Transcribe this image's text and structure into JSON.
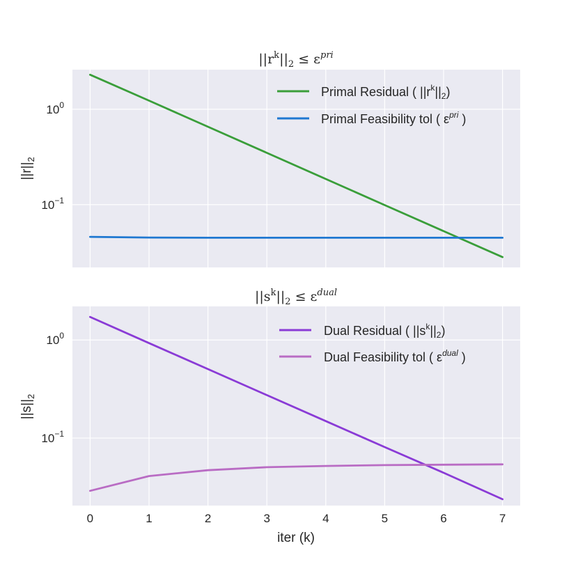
{
  "chart_data": [
    {
      "type": "line",
      "title": "||r^k||_2 ≤ ε^pri",
      "title_parts": {
        "lead": "||r",
        "sup1": "k",
        "mid": "||",
        "sub": "2",
        "rel": " ≤ ε",
        "sup2": "pri"
      },
      "xlabel": "",
      "ylabel": "||r||_2",
      "ylabel_parts": {
        "main": "||r||",
        "sub": "2"
      },
      "yscale": "log",
      "ylim": [
        0.022,
        2.6
      ],
      "xlim": [
        -0.3,
        7.3
      ],
      "grid": true,
      "legend_position": "top-right",
      "x": [
        0,
        1,
        2,
        3,
        4,
        5,
        6,
        7
      ],
      "xticks": [
        "0",
        "1",
        "2",
        "3",
        "4",
        "5",
        "6",
        "7"
      ],
      "ytick_labels": [
        {
          "value": 1,
          "base": "10",
          "exp": "0"
        },
        {
          "value": 0.1,
          "base": "10",
          "exp": "−1"
        }
      ],
      "series": [
        {
          "name": "Primal Residual ( ||r^k||_2)",
          "legend_parts": {
            "lead": "Primal Residual ( ||r",
            "sup": "k",
            "mid": "||",
            "sub": "2",
            "tail": ")"
          },
          "color": "#3a9e3a",
          "values": [
            2.3,
            1.23,
            0.655,
            0.349,
            0.186,
            0.099,
            0.0528,
            0.0282
          ]
        },
        {
          "name": "Primal Feasibility tol ( ε^pri )",
          "legend_parts": {
            "lead": "Primal Feasibility tol ( ε",
            "sup": "pri",
            "mid": "",
            "sub": "",
            "tail": " )"
          },
          "color": "#1f78d1",
          "values": [
            0.046,
            0.0452,
            0.045,
            0.045,
            0.045,
            0.045,
            0.045,
            0.045
          ]
        }
      ]
    },
    {
      "type": "line",
      "title": "||s^k||_2 ≤ ε^dual",
      "title_parts": {
        "lead": "||s",
        "sup1": "k",
        "mid": "||",
        "sub": "2",
        "rel": " ≤ ε",
        "sup2": "dual"
      },
      "xlabel": "iter (k)",
      "ylabel": "||s||_2",
      "ylabel_parts": {
        "main": "||s||",
        "sub": "2"
      },
      "yscale": "log",
      "ylim": [
        0.0205,
        2.2
      ],
      "xlim": [
        -0.3,
        7.3
      ],
      "grid": true,
      "legend_position": "top-right",
      "x": [
        0,
        1,
        2,
        3,
        4,
        5,
        6,
        7
      ],
      "xticks": [
        "0",
        "1",
        "2",
        "3",
        "4",
        "5",
        "6",
        "7"
      ],
      "ytick_labels": [
        {
          "value": 1,
          "base": "10",
          "exp": "0"
        },
        {
          "value": 0.1,
          "base": "10",
          "exp": "−1"
        }
      ],
      "series": [
        {
          "name": "Dual Residual ( ||s^k||_2)",
          "legend_parts": {
            "lead": "Dual Residual ( ||s",
            "sup": "k",
            "mid": "||",
            "sub": "2",
            "tail": ")"
          },
          "color": "#8a3bd6",
          "values": [
            1.72,
            0.93,
            0.505,
            0.274,
            0.149,
            0.081,
            0.0443,
            0.0238
          ]
        },
        {
          "name": "Dual Feasibility tol ( ε^dual )",
          "legend_parts": {
            "lead": "Dual Feasibility tol ( ε",
            "sup": "dual",
            "mid": "",
            "sub": "",
            "tail": " )"
          },
          "color": "#b96cc4",
          "values": [
            0.029,
            0.041,
            0.047,
            0.0505,
            0.052,
            0.053,
            0.0535,
            0.054
          ]
        }
      ]
    }
  ]
}
